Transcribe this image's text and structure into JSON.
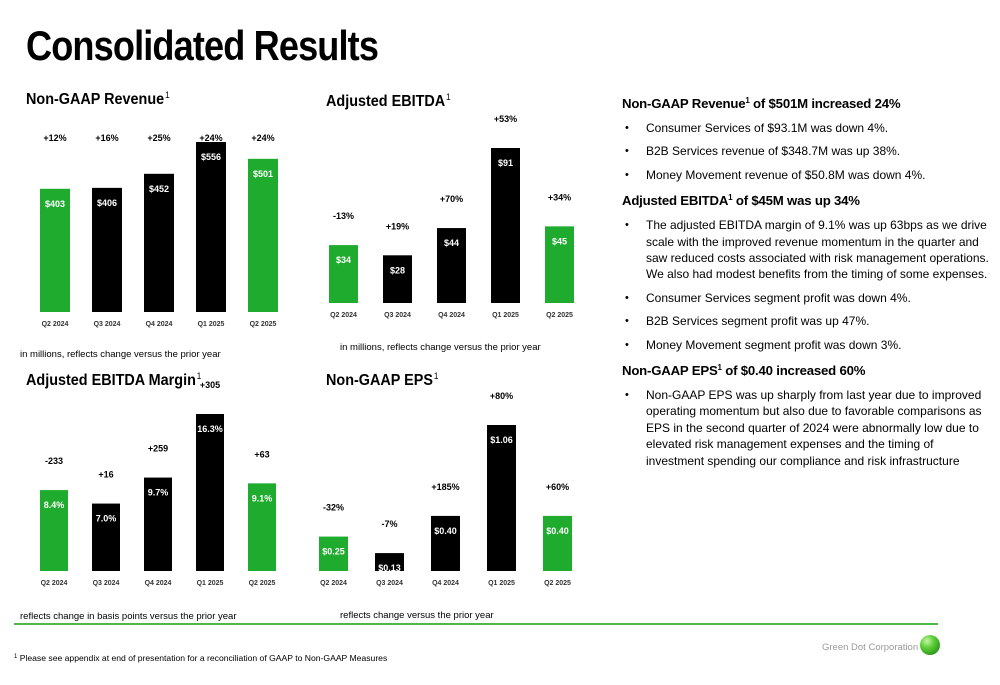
{
  "page": {
    "title": "Consolidated Results"
  },
  "colors": {
    "green": "#1fab2e",
    "black": "#000000",
    "rule": "#4db848"
  },
  "chart_data": [
    {
      "type": "bar",
      "title": "Non-GAAP Revenue",
      "superscript": "1",
      "categories": [
        "Q2 2024",
        "Q3 2024",
        "Q4 2024",
        "Q1 2025",
        "Q2 2025"
      ],
      "values": [
        403,
        406,
        452,
        556,
        501
      ],
      "value_labels": [
        "$403",
        "$406",
        "$452",
        "$556",
        "$501"
      ],
      "change_labels": [
        "+12%",
        "+16%",
        "+25%",
        "+24%",
        "+24%"
      ],
      "bar_colors": [
        "green",
        "black",
        "black",
        "black",
        "green"
      ],
      "note": "in millions, reflects change versus the prior year"
    },
    {
      "type": "bar",
      "title": "Adjusted EBITDA",
      "superscript": "1",
      "categories": [
        "Q2 2024",
        "Q3 2024",
        "Q4 2024",
        "Q1 2025",
        "Q2 2025"
      ],
      "values": [
        34,
        28,
        44,
        91,
        45
      ],
      "value_labels": [
        "$34",
        "$28",
        "$44",
        "$91",
        "$45"
      ],
      "change_labels": [
        "-13%",
        "+19%",
        "+70%",
        "+53%",
        "+34%"
      ],
      "bar_colors": [
        "green",
        "black",
        "black",
        "black",
        "green"
      ],
      "note": "in millions, reflects change versus the prior year"
    },
    {
      "type": "bar",
      "title": "Adjusted EBITDA Margin",
      "superscript": "1",
      "categories": [
        "Q2 2024",
        "Q3 2024",
        "Q4 2024",
        "Q1 2025",
        "Q2 2025"
      ],
      "values": [
        8.4,
        7.0,
        9.7,
        16.3,
        9.1
      ],
      "value_labels": [
        "8.4%",
        "7.0%",
        "9.7%",
        "16.3%",
        "9.1%"
      ],
      "change_labels": [
        "-233",
        "+16",
        "+259",
        "+305",
        "+63"
      ],
      "bar_colors": [
        "green",
        "black",
        "black",
        "black",
        "green"
      ],
      "note": "reflects change in basis points versus the prior year"
    },
    {
      "type": "bar",
      "title": "Non-GAAP EPS",
      "superscript": "1",
      "categories": [
        "Q2 2024",
        "Q3 2024",
        "Q4 2024",
        "Q1 2025",
        "Q2 2025"
      ],
      "values": [
        0.25,
        0.13,
        0.4,
        1.06,
        0.4
      ],
      "value_labels": [
        "$0.25",
        "$0.13",
        "$0.40",
        "$1.06",
        "$0.40"
      ],
      "change_labels": [
        "-32%",
        "-7%",
        "+185%",
        "+80%",
        "+60%"
      ],
      "bar_colors": [
        "green",
        "black",
        "black",
        "black",
        "green"
      ],
      "note": "reflects change versus the prior year"
    }
  ],
  "summary": [
    {
      "heading_prefix": "Non-GAAP Revenue",
      "heading_sup": "1",
      "heading_suffix": " of $501M increased 24%",
      "bullets": [
        "Consumer Services of $93.1M was down 4%.",
        "B2B Services revenue of $348.7M was up 38%.",
        "Money Movement revenue of $50.8M was down 4%."
      ]
    },
    {
      "heading_prefix": "Adjusted EBITDA",
      "heading_sup": "1",
      "heading_suffix": " of $45M was up 34%",
      "bullets": [
        "The adjusted EBITDA margin of 9.1% was up 63bps as we drive scale with the improved revenue momentum in the quarter and saw reduced costs associated with risk management operations. We also had modest benefits from the timing of some expenses.",
        "Consumer Services segment profit was down 4%.",
        "B2B Services segment profit was up 47%.",
        "Money Movement segment profit was down 3%."
      ]
    },
    {
      "heading_prefix": "Non-GAAP EPS",
      "heading_sup": "1",
      "heading_suffix": " of $0.40 increased 60%",
      "bullets": [
        "Non-GAAP EPS was up sharply from last year due to improved operating momentum but also due to favorable comparisons as EPS in the second quarter of 2024 were abnormally low due to elevated risk management expenses and the timing of investment spending our compliance and risk infrastructure"
      ]
    }
  ],
  "footer": {
    "footnote_sup": "1",
    "footnote": " Please see appendix at end of presentation for a reconciliation of GAAP to Non-GAAP Measures",
    "company": "Green Dot Corporation"
  }
}
